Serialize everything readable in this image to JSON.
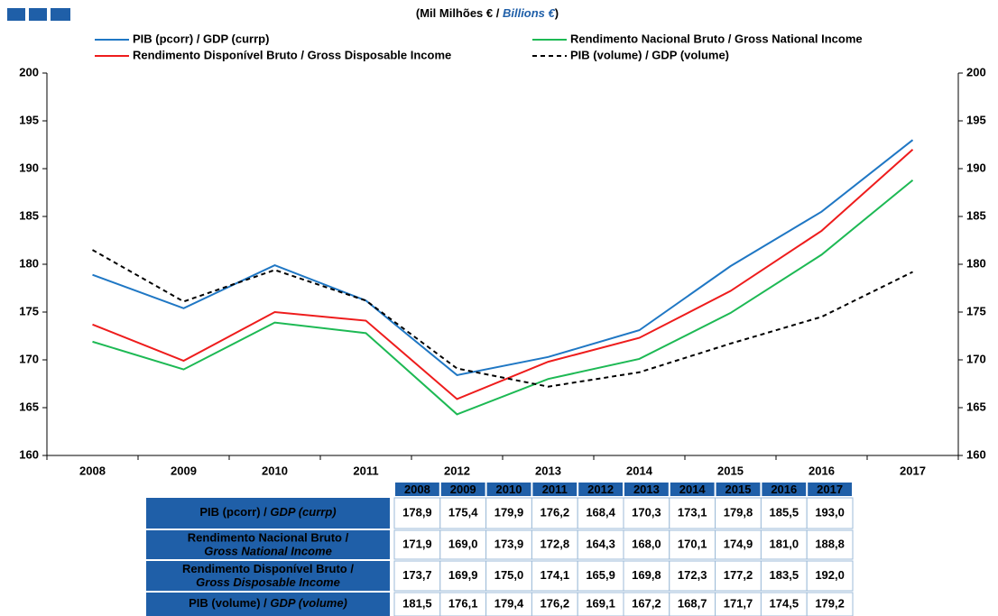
{
  "chart_data": {
    "type": "line",
    "title": [
      "(Mil Milhões € / ",
      "Billions €",
      ")"
    ],
    "categories": [
      "2008",
      "2009",
      "2010",
      "2011",
      "2012",
      "2013",
      "2014",
      "2015",
      "2016",
      "2017"
    ],
    "series": [
      {
        "name": "PIB (pcorr) / GDP (currp)",
        "table_label": [
          "PIB (pcorr) / ",
          "GDP (currp)"
        ],
        "color": "#1f77c4",
        "dash": false,
        "values": [
          178.9,
          175.4,
          179.9,
          176.2,
          168.4,
          170.3,
          173.1,
          179.8,
          185.5,
          193.0
        ],
        "value_labels": [
          "178,9",
          "175,4",
          "179,9",
          "176,2",
          "168,4",
          "170,3",
          "173,1",
          "179,8",
          "185,5",
          "193,0"
        ]
      },
      {
        "name": "Rendimento Nacional Bruto / Gross National Income",
        "table_label": [
          "Rendimento Nacional Bruto /",
          "Gross National Income"
        ],
        "color": "#1db954",
        "dash": false,
        "values": [
          171.9,
          169.0,
          173.9,
          172.8,
          164.3,
          168.0,
          170.1,
          174.9,
          181.0,
          188.8
        ],
        "value_labels": [
          "171,9",
          "169,0",
          "173,9",
          "172,8",
          "164,3",
          "168,0",
          "170,1",
          "174,9",
          "181,0",
          "188,8"
        ]
      },
      {
        "name": "Rendimento Disponível Bruto / Gross Disposable Income",
        "table_label": [
          "Rendimento Disponível Bruto /",
          "Gross Disposable Income"
        ],
        "color": "#ee1c1c",
        "dash": false,
        "values": [
          173.7,
          169.9,
          175.0,
          174.1,
          165.9,
          169.8,
          172.3,
          177.2,
          183.5,
          192.0
        ],
        "value_labels": [
          "173,7",
          "169,9",
          "175,0",
          "174,1",
          "165,9",
          "169,8",
          "172,3",
          "177,2",
          "183,5",
          "192,0"
        ]
      },
      {
        "name": "PIB (volume) / GDP (volume)",
        "table_label": [
          "PIB (volume) / ",
          "GDP (volume)"
        ],
        "color": "#000000",
        "dash": true,
        "values": [
          181.5,
          176.1,
          179.4,
          176.2,
          169.1,
          167.2,
          168.7,
          171.7,
          174.5,
          179.2
        ],
        "value_labels": [
          "181,5",
          "176,1",
          "179,4",
          "176,2",
          "169,1",
          "167,2",
          "168,7",
          "171,7",
          "174,5",
          "179,2"
        ]
      }
    ],
    "ylim": [
      160,
      200
    ],
    "yticks": [
      160,
      165,
      170,
      175,
      180,
      185,
      190,
      195,
      200
    ],
    "grid": false
  }
}
